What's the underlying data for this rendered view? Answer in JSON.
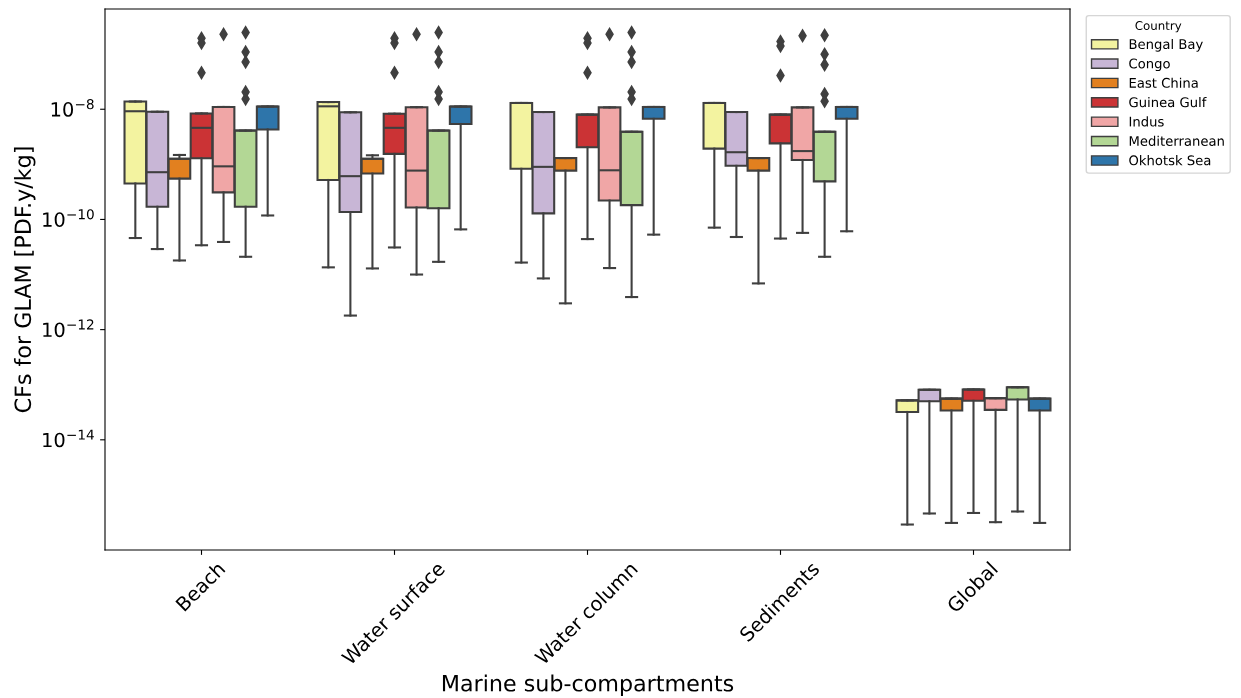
{
  "chart_data": {
    "type": "box",
    "xlabel": "Marine sub-compartments",
    "ylabel": "CFs for GLAM [PDF.y/kg]",
    "legend_title": "Country",
    "legend": "top right",
    "grid": false,
    "log": true,
    "marker": "diamond",
    "categories": [
      "Beach",
      "Water surface",
      "Water column",
      "Sediments",
      "Global"
    ],
    "ylim": [
      1e-16,
      6.6e-07
    ],
    "yticks": [
      {
        "value": 1e-14,
        "label": "10$^{−14}$"
      },
      {
        "value": 1e-12,
        "label": "10$^{−12}$"
      },
      {
        "value": 1e-10,
        "label": "10$^{−10}$"
      },
      {
        "value": 1e-08,
        "label": "10$^{−8}$"
      }
    ],
    "series": [
      {
        "name": "Bengal Bay",
        "color": "#f3f3a0",
        "boxes": [
          {
            "low": 4.6e-11,
            "q1": 4.5e-10,
            "median": 9.2e-09,
            "q3": 1.38e-08,
            "high": 1.38e-08
          },
          {
            "low": 1.35e-11,
            "q1": 5.2e-10,
            "median": 1.13e-08,
            "q3": 1.35e-08,
            "high": 1.35e-08
          },
          {
            "low": 1.65e-11,
            "q1": 8.3e-10,
            "median": 1.3e-08,
            "q3": 1.3e-08,
            "high": 1.3e-08
          },
          {
            "low": 7.1e-11,
            "q1": 1.93e-09,
            "median": 1.3e-08,
            "q3": 1.3e-08,
            "high": 1.3e-08
          },
          {
            "low": 2.9e-16,
            "q1": 3.2e-14,
            "median": 5.2e-14,
            "q3": 5.2e-14,
            "high": 5.2e-14
          }
        ]
      },
      {
        "name": "Congo",
        "color": "#c8b6d6",
        "boxes": [
          {
            "low": 2.9e-11,
            "q1": 1.7e-10,
            "median": 7.2e-10,
            "q3": 9e-09,
            "high": 9e-09
          },
          {
            "low": 1.8e-12,
            "q1": 1.36e-10,
            "median": 6.1e-10,
            "q3": 8.8e-09,
            "high": 8.8e-09
          },
          {
            "low": 8.5e-12,
            "q1": 1.29e-10,
            "median": 9e-10,
            "q3": 8.9e-09,
            "high": 8.9e-09
          },
          {
            "low": 4.8e-11,
            "q1": 9.4e-10,
            "median": 1.66e-09,
            "q3": 8.9e-09,
            "high": 8.9e-09
          },
          {
            "low": 4.6e-16,
            "q1": 5e-14,
            "median": 8.1e-14,
            "q3": 8.1e-14,
            "high": 8.1e-14
          }
        ]
      },
      {
        "name": "East China",
        "color": "#e2801f",
        "boxes": [
          {
            "low": 1.8e-11,
            "q1": 5.5e-10,
            "median": 1.26e-09,
            "q3": 1.26e-09,
            "high": 1.48e-09
          },
          {
            "low": 1.29e-11,
            "q1": 6.8e-10,
            "median": 1.26e-09,
            "q3": 1.26e-09,
            "high": 1.46e-09
          },
          {
            "low": 3e-12,
            "q1": 7.7e-10,
            "median": 1.3e-09,
            "q3": 1.3e-09,
            "high": 1.3e-09
          },
          {
            "low": 6.9e-12,
            "q1": 7.7e-10,
            "median": 1.3e-09,
            "q3": 1.3e-09,
            "high": 1.3e-09
          },
          {
            "low": 3.1e-16,
            "q1": 3.4e-14,
            "median": 5.6e-14,
            "q3": 5.6e-14,
            "high": 5.6e-14
          }
        ]
      },
      {
        "name": "Guinea Gulf",
        "color": "#cb3335",
        "boxes": [
          {
            "low": 3.4e-11,
            "q1": 1.29e-09,
            "median": 4.6e-09,
            "q3": 8.4e-09,
            "high": 8.4e-09,
            "outliers": [
              1.94e-07,
              1.6e-07,
              4.6e-08
            ]
          },
          {
            "low": 3.1e-11,
            "q1": 1.55e-09,
            "median": 4.6e-09,
            "q3": 8.3e-09,
            "high": 8.3e-09,
            "outliers": [
              1.94e-07,
              1.6e-07,
              4.6e-08
            ]
          },
          {
            "low": 4.4e-11,
            "q1": 2.04e-09,
            "median": 8e-09,
            "q3": 8e-09,
            "high": 8e-09,
            "outliers": [
              1.94e-07,
              1.6e-07,
              4.6e-08
            ]
          },
          {
            "low": 4.5e-11,
            "q1": 2.4e-09,
            "median": 8e-09,
            "q3": 8e-09,
            "high": 8e-09,
            "outliers": [
              1.7e-07,
              1.4e-07,
              4.1e-08
            ]
          },
          {
            "low": 4.7e-16,
            "q1": 5.1e-14,
            "median": 8.2e-14,
            "q3": 8.2e-14,
            "high": 8.2e-14
          }
        ]
      },
      {
        "name": "Indus",
        "color": "#f0a6a6",
        "boxes": [
          {
            "low": 3.9e-11,
            "q1": 3.1e-10,
            "median": 9.2e-10,
            "q3": 1.1e-08,
            "high": 1.1e-08,
            "outliers": [
              2.3e-07
            ]
          },
          {
            "low": 1e-11,
            "q1": 1.65e-10,
            "median": 7.7e-10,
            "q3": 1.09e-08,
            "high": 1.09e-08,
            "outliers": [
              2.3e-07
            ]
          },
          {
            "low": 1.31e-11,
            "q1": 2.2e-10,
            "median": 7.8e-10,
            "q3": 1.08e-08,
            "high": 1.08e-08,
            "outliers": [
              2.3e-07
            ]
          },
          {
            "low": 5.7e-11,
            "q1": 1.2e-09,
            "median": 1.74e-09,
            "q3": 1.08e-08,
            "high": 1.08e-08,
            "outliers": [
              2.15e-07
            ]
          },
          {
            "low": 3.2e-16,
            "q1": 3.5e-14,
            "median": 5.7e-14,
            "q3": 5.7e-14,
            "high": 5.7e-14
          }
        ]
      },
      {
        "name": "Mediterranean",
        "color": "#b3d795",
        "boxes": [
          {
            "low": 2.1e-11,
            "q1": 1.7e-10,
            "median": 4.1e-09,
            "q3": 4.1e-09,
            "high": 4.1e-09,
            "outliers": [
              2.46e-07,
              1.09e-07,
              7.2e-08,
              2.06e-08,
              1.54e-08
            ]
          },
          {
            "low": 1.7e-11,
            "q1": 1.6e-10,
            "median": 4.1e-09,
            "q3": 4.1e-09,
            "high": 4.1e-09,
            "outliers": [
              2.46e-07,
              1.09e-07,
              7.2e-08,
              2.06e-08,
              1.54e-08
            ]
          },
          {
            "low": 3.9e-12,
            "q1": 1.82e-10,
            "median": 3.9e-09,
            "q3": 3.9e-09,
            "high": 3.9e-09,
            "outliers": [
              2.46e-07,
              1.09e-07,
              7.2e-08,
              2.06e-08,
              1.54e-08
            ]
          },
          {
            "low": 2.1e-11,
            "q1": 4.9e-10,
            "median": 3.9e-09,
            "q3": 3.9e-09,
            "high": 3.9e-09,
            "outliers": [
              2.2e-07,
              1e-07,
              6.4e-08,
              1.9e-08,
              1.4e-08
            ]
          },
          {
            "low": 5e-16,
            "q1": 5.4e-14,
            "median": 9e-14,
            "q3": 9e-14,
            "high": 9e-14
          }
        ]
      },
      {
        "name": "Okhotsk Sea",
        "color": "#2e75aa",
        "boxes": [
          {
            "low": 1.18e-10,
            "q1": 4.3e-09,
            "median": 1.12e-08,
            "q3": 1.12e-08,
            "high": 1.12e-08
          },
          {
            "low": 6.6e-11,
            "q1": 5.4e-09,
            "median": 1.12e-08,
            "q3": 1.12e-08,
            "high": 1.12e-08
          },
          {
            "low": 5.3e-11,
            "q1": 6.7e-09,
            "median": 1.1e-08,
            "q3": 1.1e-08,
            "high": 1.1e-08
          },
          {
            "low": 6.1e-11,
            "q1": 6.7e-09,
            "median": 1.1e-08,
            "q3": 1.1e-08,
            "high": 1.1e-08
          },
          {
            "low": 3.1e-16,
            "q1": 3.4e-14,
            "median": 5.6e-14,
            "q3": 5.6e-14,
            "high": 5.6e-14
          }
        ]
      }
    ]
  }
}
